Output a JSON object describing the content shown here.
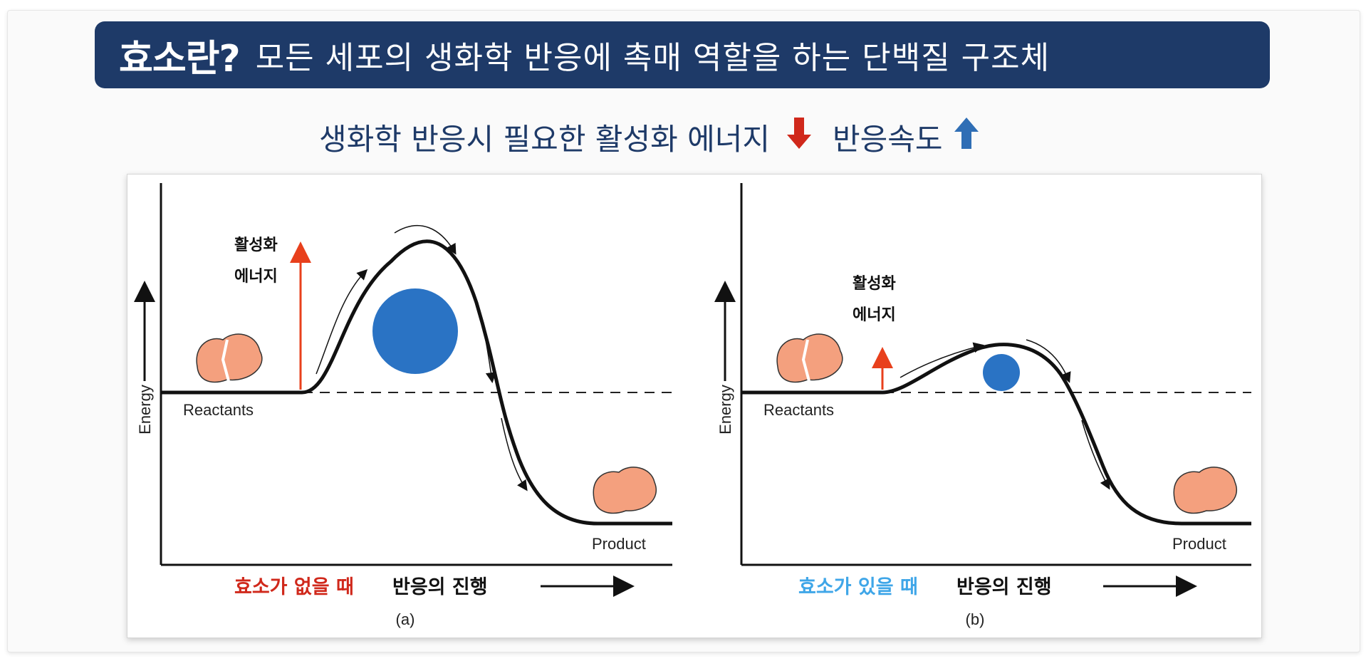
{
  "header": {
    "title": "효소란?",
    "description": "모든 세포의 생화학 반응에 촉매 역할을 하는 단백질 구조체"
  },
  "subtitle": {
    "activation_text": "생화학 반응시 필요한 활성화 에너지",
    "activation_trend_icon": "arrow-down-icon",
    "rate_text": "반응속도",
    "rate_trend_icon": "arrow-up-icon",
    "colors": {
      "text": "#1e3a68",
      "down_arrow": "#d0281b",
      "up_arrow": "#2f6eb5"
    }
  },
  "diagrams": {
    "a": {
      "y_axis_label": "Energy",
      "reactants_label": "Reactants",
      "product_label": "Product",
      "activation_label_line1": "활성화",
      "activation_label_line2": "에너지",
      "caption_highlight": "효소가 없을 때",
      "caption_rest": "반응의 진행",
      "caption_highlight_color": "#d0281b",
      "panel_label": "(a)"
    },
    "b": {
      "y_axis_label": "Energy",
      "reactants_label": "Reactants",
      "product_label": "Product",
      "activation_label_line1": "활성화",
      "activation_label_line2": "에너지",
      "caption_highlight": "효소가 있을 때",
      "caption_rest": "반응의 진행",
      "caption_highlight_color": "#3fa6e8",
      "panel_label": "(b)"
    }
  },
  "colors": {
    "title_bar": "#1e3a68",
    "activation_arrow": "#e8401c",
    "ball": "#2a73c4",
    "molecule": "#f4a07e"
  }
}
